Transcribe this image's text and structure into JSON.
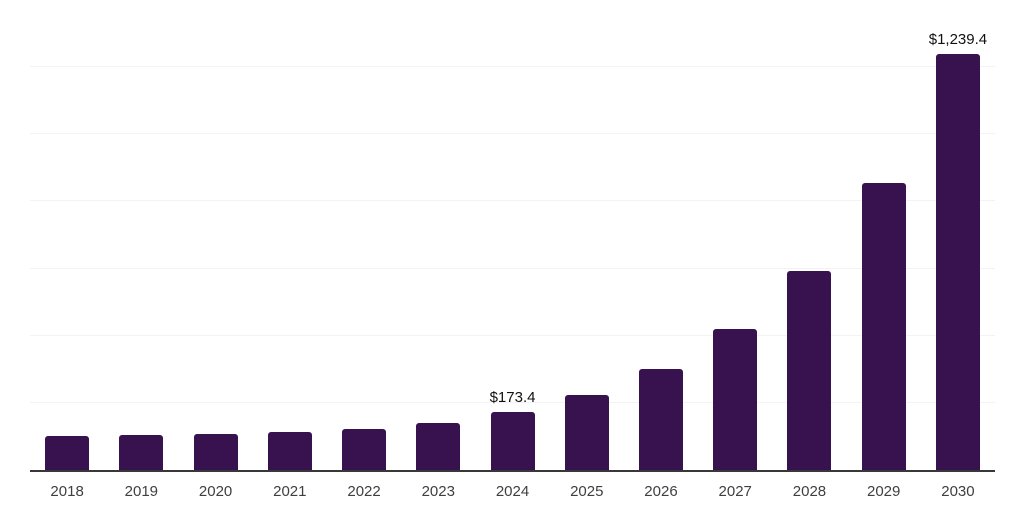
{
  "chart_data": {
    "type": "bar",
    "title": "",
    "xlabel": "",
    "ylabel": "",
    "categories": [
      "2018",
      "2019",
      "2020",
      "2021",
      "2022",
      "2023",
      "2024",
      "2025",
      "2026",
      "2027",
      "2028",
      "2029",
      "2030"
    ],
    "values": [
      102,
      104,
      108,
      113,
      121,
      140,
      173.4,
      223,
      301,
      420,
      594,
      856,
      1239.4
    ],
    "data_labels": [
      "",
      "",
      "",
      "",
      "",
      "",
      "$173.4",
      "",
      "",
      "",
      "",
      "",
      "$1,239.4"
    ],
    "ylim": [
      0,
      1400
    ],
    "gridline_step": 200,
    "grid": true,
    "legend_position": "none",
    "colors": {
      "bar": "#38114F",
      "axis_line": "#383838",
      "gridline": "#F3F3F3",
      "tick_label": "#3F3F3F",
      "data_label": "#111111",
      "background": "#FFFFFF"
    }
  }
}
